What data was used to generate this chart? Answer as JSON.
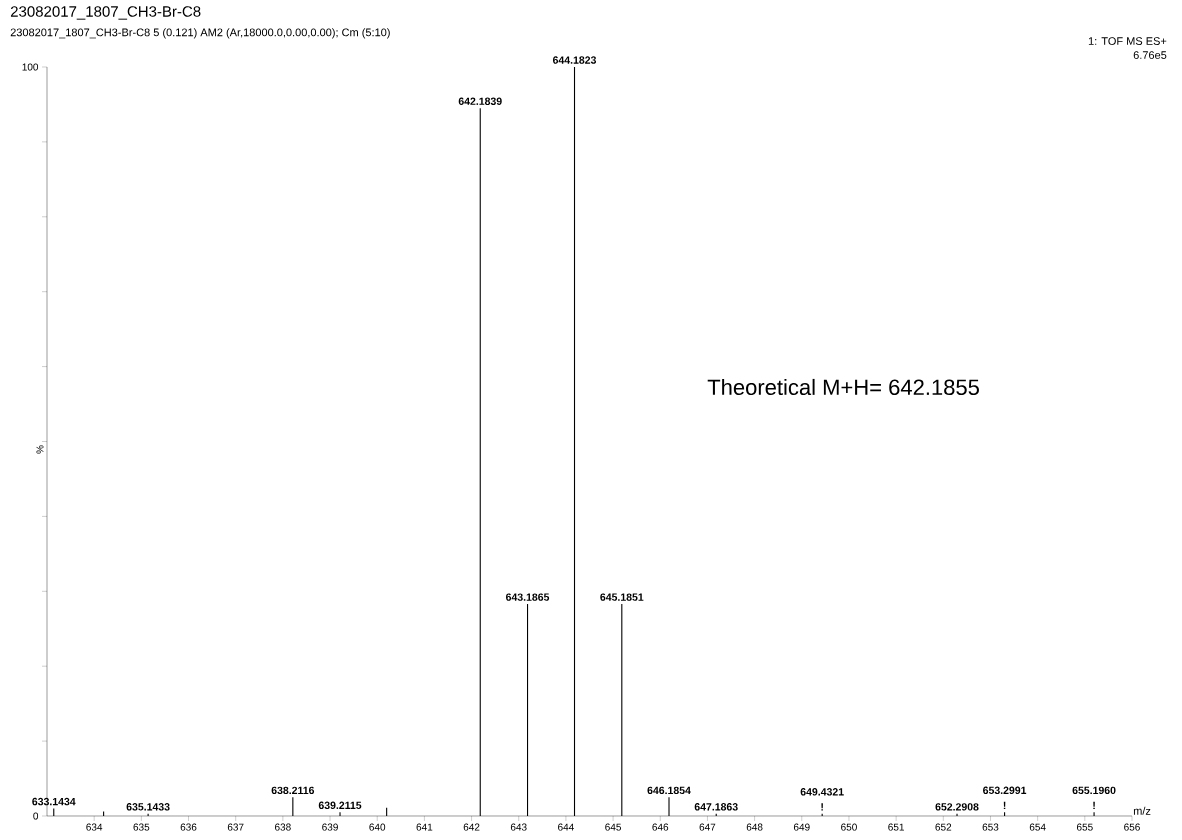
{
  "chart_data": {
    "type": "bar",
    "title": "23082017_1807_CH3-Br-C8",
    "subtitle": "23082017_1807_CH3-Br-C8 5 (0.121) AM2 (Ar,18000.0,0.00,0.00); Cm (5:10)",
    "xlabel": "m/z",
    "ylabel": "%",
    "x": [
      633.1434,
      634.2,
      635.1433,
      638.2116,
      639.2115,
      640.2,
      642.1839,
      643.1865,
      644.1823,
      645.1851,
      646.1854,
      647.1863,
      649.4321,
      652.2908,
      653.2991,
      655.196
    ],
    "values": [
      1.0,
      0.6,
      0.3,
      2.5,
      0.5,
      1.1,
      94.5,
      28.3,
      100,
      28.3,
      2.5,
      0.3,
      0.3,
      0.3,
      0.5,
      0.5
    ],
    "color": "#000000",
    "xlim": [
      633,
      656
    ],
    "ylim": [
      0,
      100
    ],
    "xticks": [
      634,
      635,
      636,
      637,
      638,
      639,
      640,
      641,
      642,
      643,
      644,
      645,
      646,
      647,
      648,
      649,
      650,
      651,
      652,
      653,
      654,
      655,
      656
    ],
    "yticks": [
      0,
      {
        "value": 10,
        "label": null
      },
      {
        "value": 20,
        "label": null
      },
      {
        "value": 30,
        "label": null
      },
      {
        "value": 40,
        "label": null
      },
      {
        "value": 50,
        "label": null
      },
      {
        "value": 60,
        "label": null
      },
      {
        "value": 70,
        "label": null
      },
      {
        "value": 80,
        "label": null
      },
      {
        "value": 90,
        "label": null
      },
      100
    ],
    "annotations": [
      "1: TOF MS ES+",
      "6.76e5",
      "Theoretical M+H= 642.1855",
      {
        "text": "633.1434",
        "x": 633.1434,
        "y": 1.0
      },
      {
        "text": "635.1433",
        "x": 635.1433,
        "y": 0.3
      },
      {
        "text": "638.2116",
        "x": 638.2116,
        "y": 2.5
      },
      {
        "text": "639.2115",
        "x": 639.2115,
        "y": 0.5
      },
      {
        "text": "642.1839",
        "x": 642.1839,
        "y": 94.5
      },
      {
        "text": "643.1865",
        "x": 643.1865,
        "y": 28.3
      },
      {
        "text": "644.1823",
        "x": 644.1823,
        "y": 100
      },
      {
        "text": "645.1851",
        "x": 645.1851,
        "y": 28.3
      },
      {
        "text": "646.1854",
        "x": 646.1854,
        "y": 2.5
      },
      {
        "text": "647.1863",
        "x": 647.1863,
        "y": 0.3
      },
      {
        "text": "!",
        "x": 649.4321,
        "y": 0.3
      },
      {
        "text": "649.4321",
        "x": 649.4321,
        "y": 0.3
      },
      {
        "text": "652.2908",
        "x": 652.2908,
        "y": 0.3
      },
      {
        "text": "!",
        "x": 653.2991,
        "y": 0.5
      },
      {
        "text": "653.2991",
        "x": 653.2991,
        "y": 0.5
      },
      {
        "text": "!",
        "x": 655.196,
        "y": 0.5
      },
      {
        "text": "655.1960",
        "x": 655.196,
        "y": 0.5
      }
    ]
  }
}
